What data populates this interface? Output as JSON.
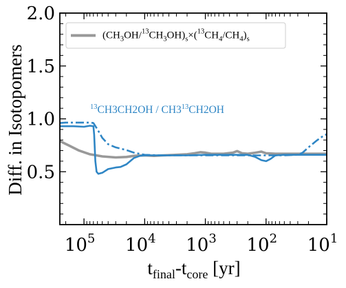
{
  "chart_data": {
    "type": "line",
    "xlabel": {
      "base": "t",
      "sub1": "final",
      "mid": "-t",
      "sub2": "core",
      "tail": " [yr]"
    },
    "ylabel": "Diff. in Isotopomers",
    "x_scale": "log",
    "x_reversed": true,
    "xlim": [
      250000,
      10
    ],
    "ylim": [
      0,
      2.0
    ],
    "y_ticks": [
      {
        "value": 0.5,
        "label": "0.5"
      },
      {
        "value": 1.0,
        "label": "1.0"
      },
      {
        "value": 1.5,
        "label": "1.5"
      },
      {
        "value": 2.0,
        "label": "2.0"
      }
    ],
    "x_ticks": [
      {
        "value": 100000,
        "base": "10",
        "exp": "5"
      },
      {
        "value": 10000,
        "base": "10",
        "exp": "4"
      },
      {
        "value": 1000,
        "base": "10",
        "exp": "3"
      },
      {
        "value": 100,
        "base": "10",
        "exp": "2"
      },
      {
        "value": 10,
        "base": "10",
        "exp": "1"
      }
    ],
    "legend": {
      "position": "top-left",
      "label": {
        "p1": "(CH",
        "s1": "3",
        "p2": "OH/",
        "sup1": "13",
        "p3": "CH",
        "s2": "3",
        "p4": "OH)",
        "s3": "s",
        "p5": "×(",
        "sup2": "13",
        "p6": "CH",
        "s4": "4",
        "p7": "/CH",
        "s5": "4",
        "p8": ")",
        "s6": "s"
      },
      "color": "#999999"
    },
    "annotation": {
      "sup1": "13",
      "t1": "CH3CH2OH / CH3",
      "sup2": "13",
      "t2": "CH2OH",
      "color": "#2f86c5"
    },
    "series": [
      {
        "style": "solid-gray",
        "color": "#999999",
        "points": [
          [
            250000,
            0.79
          ],
          [
            180000,
            0.75
          ],
          [
            120000,
            0.7
          ],
          [
            80000,
            0.665
          ],
          [
            50000,
            0.645
          ],
          [
            30000,
            0.635
          ],
          [
            20000,
            0.64
          ],
          [
            15000,
            0.65
          ],
          [
            10000,
            0.655
          ],
          [
            7000,
            0.65
          ],
          [
            5000,
            0.655
          ],
          [
            3000,
            0.66
          ],
          [
            2000,
            0.665
          ],
          [
            1500,
            0.675
          ],
          [
            1200,
            0.685
          ],
          [
            1000,
            0.68
          ],
          [
            800,
            0.67
          ],
          [
            500,
            0.67
          ],
          [
            350,
            0.68
          ],
          [
            300,
            0.695
          ],
          [
            250,
            0.675
          ],
          [
            200,
            0.67
          ],
          [
            150,
            0.68
          ],
          [
            120,
            0.69
          ],
          [
            100,
            0.675
          ],
          [
            70,
            0.67
          ],
          [
            40,
            0.67
          ],
          [
            20,
            0.67
          ],
          [
            10,
            0.67
          ]
        ]
      },
      {
        "style": "solid-blue",
        "color": "#2f86c5",
        "points": [
          [
            250000,
            0.93
          ],
          [
            150000,
            0.93
          ],
          [
            100000,
            0.925
          ],
          [
            80000,
            0.935
          ],
          [
            70000,
            0.93
          ],
          [
            68000,
            0.85
          ],
          [
            65000,
            0.6
          ],
          [
            62000,
            0.5
          ],
          [
            58000,
            0.48
          ],
          [
            50000,
            0.49
          ],
          [
            40000,
            0.525
          ],
          [
            30000,
            0.54
          ],
          [
            25000,
            0.545
          ],
          [
            20000,
            0.57
          ],
          [
            15000,
            0.63
          ],
          [
            12000,
            0.65
          ],
          [
            10000,
            0.655
          ],
          [
            5000,
            0.655
          ],
          [
            2000,
            0.655
          ],
          [
            1000,
            0.66
          ],
          [
            500,
            0.66
          ],
          [
            300,
            0.66
          ],
          [
            200,
            0.66
          ],
          [
            150,
            0.64
          ],
          [
            120,
            0.61
          ],
          [
            100,
            0.6
          ],
          [
            85,
            0.62
          ],
          [
            70,
            0.655
          ],
          [
            50,
            0.66
          ],
          [
            20,
            0.66
          ],
          [
            10,
            0.66
          ]
        ]
      },
      {
        "style": "dashdot-blue",
        "color": "#2f86c5",
        "points": [
          [
            250000,
            0.96
          ],
          [
            200000,
            0.965
          ],
          [
            150000,
            0.965
          ],
          [
            100000,
            0.965
          ],
          [
            80000,
            0.965
          ],
          [
            70000,
            0.96
          ],
          [
            60000,
            0.9
          ],
          [
            50000,
            0.82
          ],
          [
            40000,
            0.76
          ],
          [
            30000,
            0.73
          ],
          [
            20000,
            0.705
          ],
          [
            15000,
            0.68
          ],
          [
            10000,
            0.66
          ],
          [
            5000,
            0.655
          ],
          [
            2000,
            0.655
          ],
          [
            1000,
            0.655
          ],
          [
            500,
            0.655
          ],
          [
            200,
            0.655
          ],
          [
            100,
            0.655
          ],
          [
            50,
            0.655
          ],
          [
            30,
            0.66
          ],
          [
            25,
            0.68
          ],
          [
            20,
            0.73
          ],
          [
            15,
            0.79
          ],
          [
            12,
            0.83
          ],
          [
            10,
            0.855
          ]
        ]
      }
    ]
  }
}
